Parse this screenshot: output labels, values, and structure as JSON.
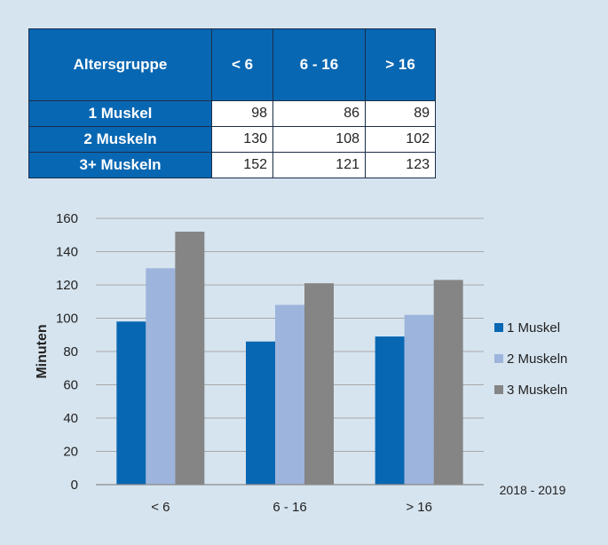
{
  "table": {
    "header": [
      "Altersgruppe",
      "< 6",
      "6 - 16",
      "> 16"
    ],
    "rows": [
      {
        "label": "1 Muskel",
        "values": [
          "98",
          "86",
          "89"
        ]
      },
      {
        "label": "2 Muskeln",
        "values": [
          "130",
          "108",
          "102"
        ]
      },
      {
        "label": "3+ Muskeln",
        "values": [
          "152",
          "121",
          "123"
        ]
      }
    ]
  },
  "chart_data": {
    "type": "bar",
    "categories": [
      "< 6",
      "6 - 16",
      "> 16"
    ],
    "series": [
      {
        "name": "1 Muskel",
        "values": [
          98,
          86,
          89
        ],
        "color": "#0867b2"
      },
      {
        "name": "2 Muskeln",
        "values": [
          130,
          108,
          102
        ],
        "color": "#9db4dc"
      },
      {
        "name": "3 Muskeln",
        "values": [
          152,
          121,
          123
        ],
        "color": "#858585"
      }
    ],
    "ylabel": "Minuten",
    "xlabel": "",
    "ylim": [
      0,
      160
    ],
    "yticks": [
      0,
      20,
      40,
      60,
      80,
      100,
      120,
      140,
      160
    ],
    "grid": true,
    "legend_position": "right",
    "footnote": "2018 - 2019"
  }
}
